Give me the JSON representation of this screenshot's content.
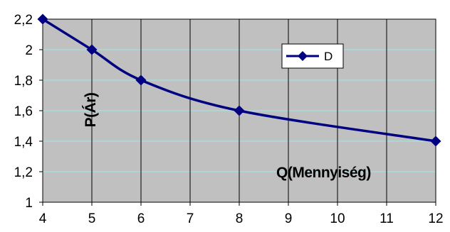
{
  "chart_data": {
    "type": "line",
    "title": "",
    "xlabel": "Q(Mennyiség)",
    "ylabel": "P(Ár)",
    "x_ticks": [
      "4",
      "5",
      "6",
      "7",
      "8",
      "9",
      "10",
      "11",
      "12"
    ],
    "y_ticks": [
      "1",
      "1,2",
      "1,4",
      "1,6",
      "1,8",
      "2",
      "2,2"
    ],
    "xlim": [
      4,
      12
    ],
    "ylim": [
      1,
      2.2
    ],
    "grid": "vertical and horizontal gridlines",
    "legend_position": "top-right",
    "series": [
      {
        "name": "D",
        "color": "#000080",
        "marker": "diamond",
        "smooth": true,
        "points": [
          {
            "x": 4,
            "y": 2.2
          },
          {
            "x": 5,
            "y": 2.0
          },
          {
            "x": 6,
            "y": 1.8
          },
          {
            "x": 8,
            "y": 1.6
          },
          {
            "x": 12,
            "y": 1.4
          }
        ]
      }
    ],
    "plot_background": "#c0c0c0"
  }
}
